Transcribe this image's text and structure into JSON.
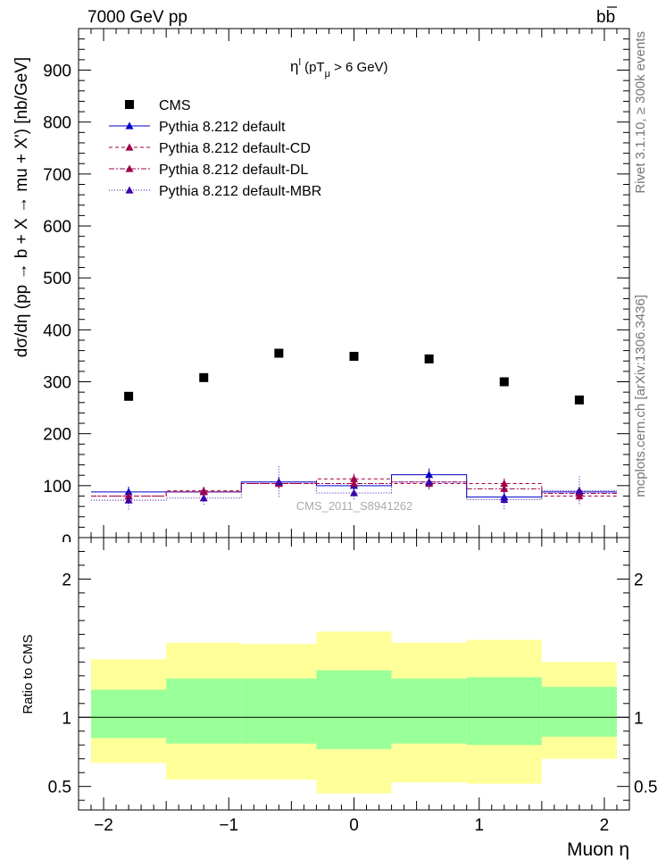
{
  "header": {
    "left": "7000 GeV pp",
    "right_main": "b",
    "right_bar": "b"
  },
  "plot_title": {
    "prefix": "η",
    "sup": "l",
    "open": " (pT",
    "sub": "μ",
    "tail": " >  6 GeV)"
  },
  "side_labels": {
    "rivet": "Rivet 3.1.10, ≥ 300k events",
    "mcplots": "mcplots.cern.ch [arXiv:1306.3436]"
  },
  "watermark": "CMS_2011_S8941262",
  "colors": {
    "cms": "#000000",
    "default": "#0000cc",
    "cd": "#a0004a",
    "dl": "#a0004a",
    "mbr": "#3a00aa",
    "band_inner": "#99ff99",
    "band_outer": "#ffff99"
  },
  "chart_data": [
    {
      "type": "scatter",
      "title": "",
      "xlabel": "Muon η",
      "ylabel": "dσ/dη (pp → b + X → mu + X') [nb/GeV]",
      "xlim": [
        -2.2,
        2.2
      ],
      "ylim": [
        0,
        980
      ],
      "yticks": [
        100,
        200,
        300,
        400,
        500,
        600,
        700,
        800,
        900
      ],
      "ytick_labels": [
        "100",
        "200",
        "300",
        "400",
        "500",
        "600",
        "700",
        "800",
        "900"
      ],
      "bin_edges": [
        -2.1,
        -1.5,
        -0.9,
        -0.3,
        0.3,
        0.9,
        1.5,
        2.1
      ],
      "x": [
        -1.8,
        -1.2,
        -0.6,
        0.0,
        0.6,
        1.2,
        1.8
      ],
      "legend_position": "top-left",
      "series": [
        {
          "name": "CMS",
          "style": "cms",
          "values": [
            272,
            308,
            355,
            349,
            344,
            300,
            265
          ],
          "errors": [
            0,
            0,
            0,
            0,
            0,
            0,
            0
          ]
        },
        {
          "name": "Pythia 8.212 default",
          "style": "default",
          "values": [
            88,
            88,
            107,
            100,
            121,
            78,
            88
          ],
          "errors": [
            10,
            8,
            10,
            10,
            12,
            10,
            10
          ]
        },
        {
          "name": "Pythia 8.212 default-CD",
          "style": "cd",
          "values": [
            80,
            90,
            104,
            113,
            104,
            104,
            80
          ],
          "errors": [
            8,
            8,
            10,
            10,
            10,
            10,
            8
          ]
        },
        {
          "name": "Pythia 8.212 default-DL",
          "style": "dl",
          "values": [
            80,
            88,
            104,
            104,
            107,
            94,
            85
          ],
          "errors": [
            8,
            8,
            10,
            10,
            10,
            10,
            8
          ]
        },
        {
          "name": "Pythia 8.212 default-MBR",
          "style": "mbr",
          "values": [
            72,
            76,
            107,
            86,
            107,
            73,
            90
          ],
          "errors": [
            20,
            15,
            30,
            15,
            18,
            20,
            28
          ]
        }
      ]
    },
    {
      "type": "area",
      "title": "",
      "xlabel": "Muon η",
      "ylabel": "Ratio to CMS",
      "xlim": [
        -2.2,
        2.2
      ],
      "ylim": [
        0.33,
        2.3
      ],
      "yticks": [
        0.5,
        1,
        2
      ],
      "ytick_labels": [
        "0.5",
        "1",
        "2"
      ],
      "xticks": [
        -2,
        -1,
        0,
        1,
        2
      ],
      "xtick_labels": [
        "−2",
        "−1",
        "0",
        "1",
        "2"
      ],
      "reference_line": 1,
      "bin_edges": [
        -2.1,
        -1.5,
        -0.9,
        -0.3,
        0.3,
        0.9,
        1.5,
        2.1
      ],
      "inner_band": {
        "low": [
          0.85,
          0.81,
          0.81,
          0.77,
          0.81,
          0.8,
          0.86
        ],
        "high": [
          1.2,
          1.28,
          1.28,
          1.34,
          1.28,
          1.29,
          1.22
        ]
      },
      "outer_band": {
        "low": [
          0.67,
          0.55,
          0.55,
          0.45,
          0.53,
          0.52,
          0.7
        ],
        "high": [
          1.42,
          1.54,
          1.53,
          1.62,
          1.54,
          1.56,
          1.4
        ]
      }
    }
  ]
}
